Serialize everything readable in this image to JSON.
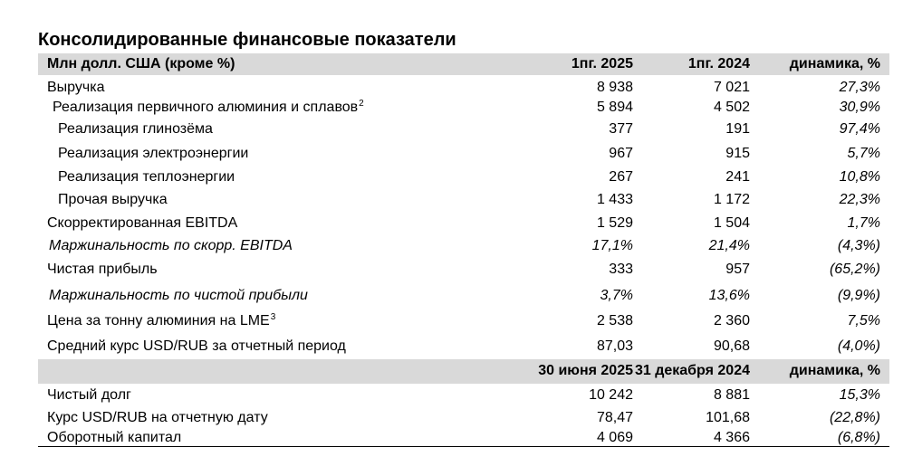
{
  "title": "Консолидированные финансовые показатели",
  "header1": {
    "label": "Млн долл. США (кроме %)",
    "col1": "1пг. 2025",
    "col2": "1пг. 2024",
    "col3": "динамика, %"
  },
  "rows1": [
    {
      "label": "Выручка",
      "v1": "8 938",
      "v2": "7 021",
      "v3": "27,3%"
    },
    {
      "label": "Реализация первичного алюминия и сплавов",
      "sup": "2",
      "v1": "5 894",
      "v2": "4 502",
      "v3": "30,9%"
    },
    {
      "label": "Реализация глинозёма",
      "v1": "377",
      "v2": "191",
      "v3": "97,4%"
    },
    {
      "label": "Реализация электроэнергии",
      "v1": "967",
      "v2": "915",
      "v3": "5,7%"
    },
    {
      "label": "Реализация теплоэнергии",
      "v1": "267",
      "v2": "241",
      "v3": "10,8%"
    },
    {
      "label": "Прочая выручка",
      "v1": "1 433",
      "v2": "1 172",
      "v3": "22,3%"
    },
    {
      "label": "Скорректированная EBITDA",
      "v1": "1 529",
      "v2": "1 504",
      "v3": "1,7%"
    },
    {
      "label": "Маржинальность по скорр. EBITDA",
      "v1": "17,1%",
      "v2": "21,4%",
      "v3": "(4,3%)"
    },
    {
      "label": "Чистая прибыль",
      "v1": "333",
      "v2": "957",
      "v3": "(65,2%)"
    },
    {
      "label": "Маржинальность по чистой прибыли",
      "v1": "3,7%",
      "v2": "13,6%",
      "v3": "(9,9%)"
    },
    {
      "label": "Цена за тонну алюминия на LME",
      "sup": "3",
      "v1": "2 538",
      "v2": "2 360",
      "v3": "7,5%"
    },
    {
      "label": "Средний курс USD/RUB за отчетный период",
      "v1": "87,03",
      "v2": "90,68",
      "v3": "(4,0%)"
    }
  ],
  "header2": {
    "label": "",
    "col1": "30 июня 2025",
    "col2": "31 декабря 2024",
    "col3": "динамика, %"
  },
  "rows2": [
    {
      "label": "Чистый долг",
      "v1": "10 242",
      "v2": "8 881",
      "v3": "15,3%"
    },
    {
      "label": "Курс USD/RUB на отчетную дату",
      "v1": "78,47",
      "v2": "101,68",
      "v3": "(22,8%)"
    },
    {
      "label": "Оборотный капитал",
      "v1": "4 069",
      "v2": "4 366",
      "v3": "(6,8%)"
    }
  ]
}
